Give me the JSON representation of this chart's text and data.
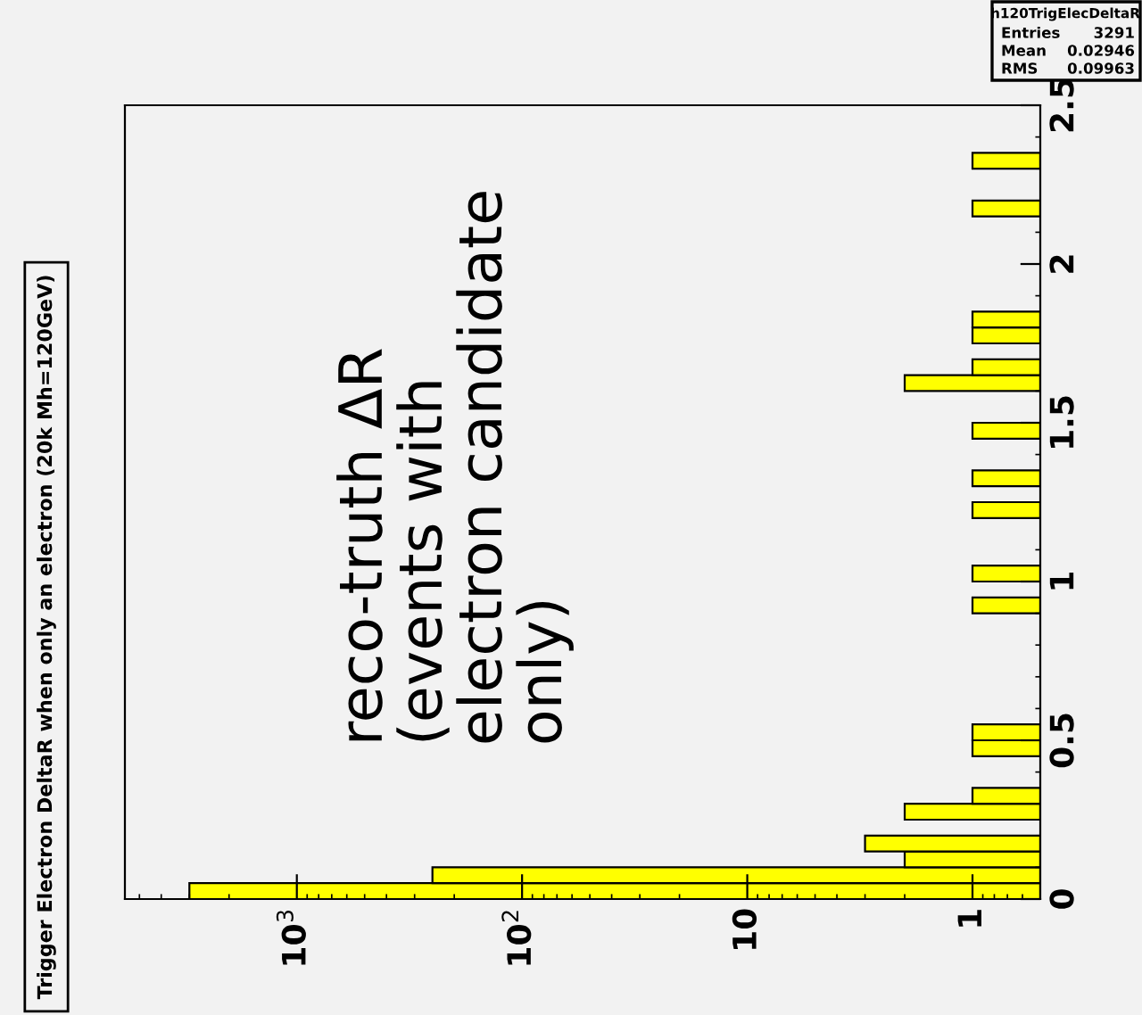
{
  "chart_data": {
    "type": "histogram",
    "orientation": "horizontal",
    "log": "x",
    "title": "Trigger Electron DeltaR when only an electron (20k Mh=120GeV)",
    "annotations": [
      "reco-truth ΔR\n(events with\nelectron candidate\nonly)",
      "h120TrigElecDeltaR",
      "Entries",
      "3291",
      "Mean",
      "0.02946",
      "RMS",
      "0.09963"
    ],
    "bins": [
      0,
      0.05,
      0.1,
      0.15,
      0.2,
      0.25,
      0.3,
      0.35,
      0.4,
      0.45,
      0.5,
      0.55,
      0.6,
      0.65,
      0.7,
      0.75,
      0.8,
      0.85,
      0.9,
      0.95,
      1.0,
      1.05,
      1.1,
      1.15,
      1.2,
      1.25,
      1.3,
      1.35,
      1.4,
      1.45,
      1.5,
      1.55,
      1.6,
      1.65,
      1.7,
      1.75,
      1.8,
      1.85,
      1.9,
      1.95,
      2.0,
      2.05,
      2.1,
      2.15,
      2.2,
      2.25,
      2.3,
      2.35,
      2.4,
      2.45,
      2.5
    ],
    "values": [
      3000,
      250,
      2,
      3,
      null,
      2,
      1,
      null,
      null,
      1,
      1,
      null,
      null,
      null,
      null,
      null,
      null,
      null,
      1,
      null,
      1,
      null,
      null,
      null,
      1,
      null,
      1,
      null,
      null,
      1,
      null,
      null,
      2,
      1,
      null,
      1,
      1,
      null,
      null,
      null,
      null,
      null,
      null,
      1,
      null,
      null,
      1,
      null,
      null,
      null
    ],
    "color": "#ffff00",
    "xlim": [
      5800,
      0.5
    ],
    "xticks": [
      {
        "value": 1000,
        "label": "10$^{3}$"
      },
      {
        "value": 100,
        "label": "10$^{2}$"
      },
      10,
      1
    ],
    "ylim": [
      0,
      2.5
    ],
    "yticks": [
      0,
      0.5,
      1,
      1.5,
      2,
      2.5
    ],
    "grid": false,
    "legend": false
  }
}
